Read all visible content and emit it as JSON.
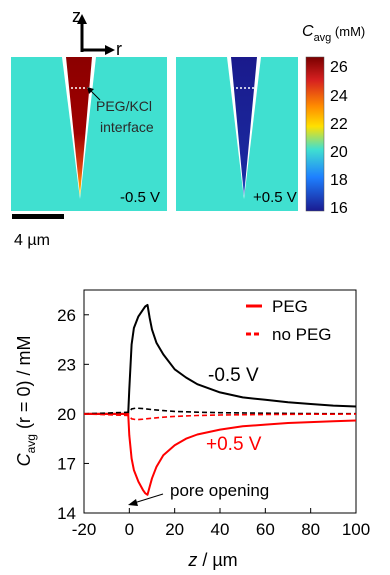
{
  "figure": {
    "top": {
      "axes_labels": {
        "z": "z",
        "r": "r"
      },
      "panel_left_label": "-0.5 V",
      "panel_right_label": "+0.5 V",
      "annotation_lines": [
        "PEG/KCl",
        "interface"
      ],
      "scale_label": "4 µm",
      "colorbar": {
        "title_main": "C",
        "title_sub": "avg",
        "title_unit": " (mM)",
        "ticks": [
          "26",
          "24",
          "22",
          "20",
          "18",
          "16"
        ],
        "colors_top_to_bottom": [
          "#8b0000",
          "#d62728",
          "#ff8000",
          "#ffd700",
          "#40e0d0",
          "#1e90ff",
          "#1f1fa0"
        ]
      },
      "background_color": "#40e0d0"
    },
    "bottom": {
      "legend": [
        {
          "label": "PEG",
          "style": "solid",
          "color": "#ff0000"
        },
        {
          "label": "no PEG",
          "style": "dashed",
          "color": "#ff0000"
        }
      ],
      "curve_labels": {
        "neg": "-0.5 V",
        "pos": "+0.5 V"
      },
      "annotation": "pore opening",
      "ylabel_parts": {
        "main": "C",
        "sub": "avg",
        "rest": " (r = 0) / mM"
      },
      "xlabel_parts": {
        "italic": "z",
        "rest": " / µm"
      }
    }
  },
  "chart_data": {
    "type": "line",
    "xlabel": "z / µm",
    "ylabel": "Cavg (r = 0) / mM",
    "xlim": [
      -20,
      100
    ],
    "ylim": [
      14,
      27.5
    ],
    "xticks": [
      -20,
      0,
      20,
      40,
      60,
      80,
      100
    ],
    "yticks": [
      14,
      17,
      20,
      23,
      26
    ],
    "series": [
      {
        "name": "-0.5 V",
        "style": "solid",
        "color": "#000000",
        "x": [
          -20,
          -0.5,
          0,
          1,
          2,
          4,
          6,
          7,
          8,
          9,
          10,
          12,
          15,
          20,
          25,
          30,
          40,
          50,
          60,
          70,
          80,
          90,
          100
        ],
        "y": [
          20,
          20,
          21.5,
          24.2,
          25.2,
          25.9,
          26.3,
          26.5,
          26.6,
          25.8,
          25.1,
          24.3,
          23.6,
          22.7,
          22.2,
          21.8,
          21.3,
          21.0,
          20.85,
          20.7,
          20.6,
          20.5,
          20.45
        ]
      },
      {
        "name": "+0.5 V",
        "style": "solid",
        "color": "#ff0000",
        "x": [
          -20,
          -0.5,
          0,
          1,
          2,
          4,
          6,
          7,
          8,
          9,
          10,
          12,
          15,
          20,
          25,
          30,
          40,
          50,
          60,
          70,
          80,
          90,
          100
        ],
        "y": [
          20,
          20,
          18.7,
          17.3,
          16.6,
          15.9,
          15.4,
          15.2,
          15.1,
          15.6,
          16.1,
          16.8,
          17.5,
          18.1,
          18.5,
          18.75,
          19.05,
          19.25,
          19.35,
          19.45,
          19.5,
          19.55,
          19.6
        ]
      },
      {
        "name": "-0.5 V no PEG",
        "style": "dashed",
        "color": "#000000",
        "x": [
          -20,
          0,
          1,
          3,
          6,
          10,
          15,
          20,
          30,
          40,
          60,
          80,
          100
        ],
        "y": [
          20,
          20.1,
          20.3,
          20.35,
          20.32,
          20.26,
          20.2,
          20.15,
          20.1,
          20.07,
          20.04,
          20.02,
          20.01
        ]
      },
      {
        "name": "+0.5 V no PEG",
        "style": "dashed",
        "color": "#ff0000",
        "x": [
          -20,
          0,
          1,
          3,
          6,
          10,
          15,
          20,
          30,
          40,
          60,
          80,
          100
        ],
        "y": [
          20,
          19.9,
          19.7,
          19.65,
          19.68,
          19.74,
          19.8,
          19.85,
          19.9,
          19.93,
          19.96,
          19.98,
          19.99
        ]
      }
    ]
  }
}
